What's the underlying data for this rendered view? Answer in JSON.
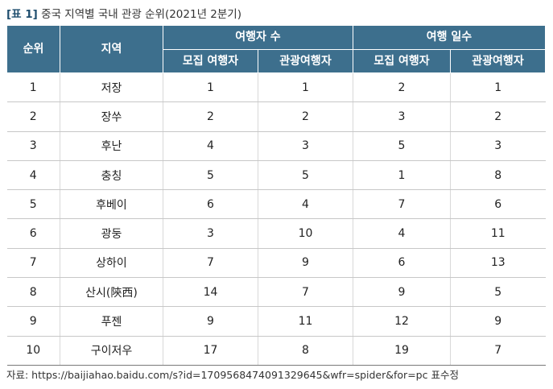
{
  "caption": {
    "tag": "[표 1]",
    "title": "중국 지역별 국내 관광 순위(2021년 2분기)"
  },
  "table": {
    "headers": {
      "rank": "순위",
      "region": "지역",
      "group_travelers": "여행자 수",
      "group_days": "여행 일수",
      "sub": [
        "모집 여행자",
        "관광여행자",
        "모집 여행자",
        "관광여행자"
      ]
    },
    "rows": [
      [
        "1",
        "저장",
        "1",
        "1",
        "2",
        "1"
      ],
      [
        "2",
        "장쑤",
        "2",
        "2",
        "3",
        "2"
      ],
      [
        "3",
        "후난",
        "4",
        "3",
        "5",
        "3"
      ],
      [
        "4",
        "충칭",
        "5",
        "5",
        "1",
        "8"
      ],
      [
        "5",
        "후베이",
        "6",
        "4",
        "7",
        "6"
      ],
      [
        "6",
        "광둥",
        "3",
        "10",
        "4",
        "11"
      ],
      [
        "7",
        "상하이",
        "7",
        "9",
        "6",
        "13"
      ],
      [
        "8",
        "산시(陝西)",
        "14",
        "7",
        "9",
        "5"
      ],
      [
        "9",
        "푸젠",
        "9",
        "11",
        "12",
        "9"
      ],
      [
        "10",
        "구이저우",
        "17",
        "8",
        "19",
        "7"
      ]
    ]
  },
  "source": "자료: https://baijiahao.baidu.com/s?id=1709568474091329645&wfr=spider&for=pc 표수정"
}
